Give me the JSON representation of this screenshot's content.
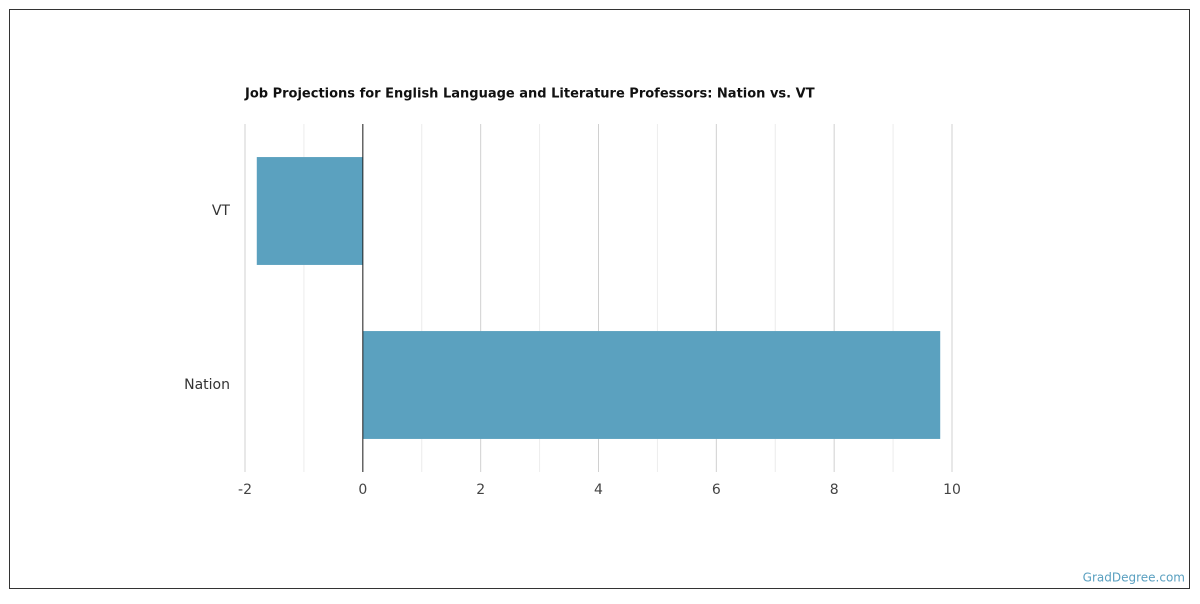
{
  "chart_data": {
    "type": "hbar",
    "title": "Job Projections for English Language and Literature Professors: Nation vs. VT",
    "categories": [
      "VT",
      "Nation"
    ],
    "values": [
      -1.8,
      9.8
    ],
    "color": "#5ba1bf",
    "xlim": [
      -2,
      10
    ],
    "xticks": [
      -2,
      0,
      2,
      4,
      6,
      8,
      10
    ],
    "xminorticks": [
      -1,
      1,
      3,
      5,
      7,
      9
    ],
    "grid": true
  },
  "watermark": "GradDegree.com"
}
